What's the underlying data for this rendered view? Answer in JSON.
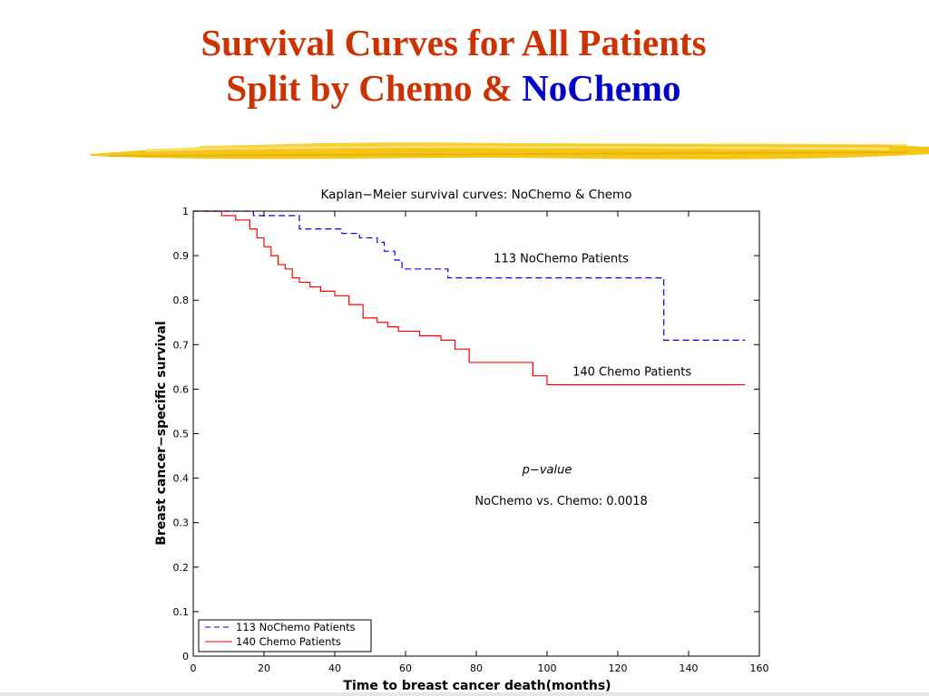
{
  "slide": {
    "title_line1": "Survival Curves for All Patients",
    "title_line2_prefix": "Split by Chemo & ",
    "title_line2_accent": "NoChemo",
    "title_color": "#cc3300",
    "accent_color": "#0000cc",
    "underline_color": "#f5c518"
  },
  "chart_data": {
    "type": "line",
    "title": "Kaplan−Meier survival curves: NoChemo & Chemo",
    "xlabel": "Time to breast cancer death(months)",
    "ylabel": "Breast cancer−specific survival",
    "xlim": [
      0,
      160
    ],
    "ylim": [
      0,
      1
    ],
    "xticks": [
      0,
      20,
      40,
      60,
      80,
      100,
      120,
      140,
      160
    ],
    "yticks": [
      0,
      0.1,
      0.2,
      0.3,
      0.4,
      0.5,
      0.6,
      0.7,
      0.8,
      0.9,
      1
    ],
    "ytick_labels": [
      "0",
      "0.1",
      "0.2",
      "0.3",
      "0.4",
      "0.5",
      "0.6",
      "0.7",
      "0.8",
      "0.9",
      "1"
    ],
    "grid": false,
    "legend_position": "bottom-left",
    "series": [
      {
        "name": "113 NoChemo Patients",
        "color": "#0000ff",
        "style": "dashed",
        "x": [
          0,
          15,
          17,
          27,
          30,
          40,
          42,
          47,
          52,
          54,
          57,
          59,
          71,
          72,
          79,
          132,
          133,
          156
        ],
        "y": [
          1.0,
          1.0,
          0.99,
          0.99,
          0.96,
          0.96,
          0.95,
          0.94,
          0.93,
          0.91,
          0.89,
          0.87,
          0.87,
          0.85,
          0.85,
          0.85,
          0.71,
          0.71
        ]
      },
      {
        "name": "140 Chemo Patients",
        "color": "#ff0000",
        "style": "solid",
        "x": [
          0,
          8,
          12,
          16,
          18,
          20,
          22,
          24,
          26,
          28,
          30,
          33,
          36,
          40,
          44,
          48,
          52,
          55,
          58,
          64,
          70,
          74,
          78,
          82,
          86,
          92,
          96,
          100,
          120,
          156
        ],
        "y": [
          1.0,
          0.99,
          0.98,
          0.96,
          0.94,
          0.92,
          0.9,
          0.88,
          0.87,
          0.85,
          0.84,
          0.83,
          0.82,
          0.81,
          0.79,
          0.76,
          0.75,
          0.74,
          0.73,
          0.72,
          0.71,
          0.69,
          0.66,
          0.66,
          0.66,
          0.66,
          0.63,
          0.61,
          0.61,
          0.61
        ]
      }
    ],
    "annotations": [
      {
        "id": "label-nochemo",
        "text": "113 NoChemo Patients",
        "x": 104,
        "y": 0.885,
        "style": "normal"
      },
      {
        "id": "label-chemo",
        "text": "140 Chemo Patients",
        "x": 124,
        "y": 0.63,
        "style": "normal"
      },
      {
        "id": "pvalue-heading",
        "text": "p−value",
        "x": 100,
        "y": 0.41,
        "style": "italic"
      },
      {
        "id": "pvalue-text",
        "text": "NoChemo vs. Chemo: 0.0018",
        "x": 104,
        "y": 0.34,
        "style": "normal"
      }
    ]
  }
}
